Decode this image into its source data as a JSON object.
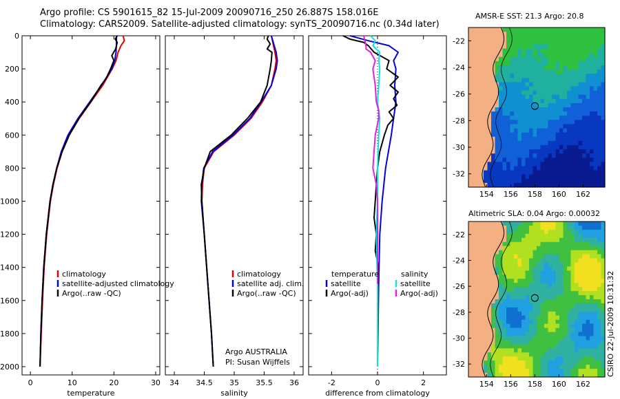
{
  "title_line1": "Argo profile: CS 5901615_82 15-Jul-2009 20090716_250 26.887S 158.016E",
  "title_line2": "Climatology: CARS2009. Satellite-adjusted climatology: synTS_20090716.nc (0.34d later)",
  "map_sst_title": "AMSR-E SST: 21.3  Argo: 20.8",
  "map_sla_title": "Altimetric SLA: 0.04  Argo: 0.00032",
  "stamp": "CSIRO 22-Jul-2009 10:31:32",
  "credit_line1": "Argo AUSTRALIA",
  "credit_line2": "PI: Susan Wijffels",
  "colors": {
    "red": "#e00000",
    "blue": "#0000e0",
    "black": "#000000",
    "cyan": "#10e0e0",
    "magenta": "#e020e0",
    "land": "#f4b083"
  },
  "chart_data": [
    {
      "type": "line",
      "xlabel": "temperature",
      "ylabel": "",
      "xlim": [
        -2,
        31
      ],
      "ylim": [
        2050,
        0
      ],
      "xticks": [
        0,
        10,
        20,
        30
      ],
      "yticks": [
        0,
        200,
        400,
        600,
        800,
        1000,
        1200,
        1400,
        1600,
        1800,
        2000
      ],
      "legend": [
        "climatology",
        "satellite-adjusted climatology",
        "Argo(..raw -QC)"
      ],
      "series": [
        {
          "name": "climatology",
          "color": "red",
          "depth": [
            0,
            30,
            60,
            100,
            150,
            200,
            300,
            400,
            500,
            600,
            700,
            800,
            900,
            1000,
            1200,
            1400,
            1600,
            1800,
            2000
          ],
          "values": [
            22.2,
            22.5,
            21.7,
            21.0,
            20.5,
            19.6,
            17.3,
            14.5,
            11.7,
            9.3,
            7.6,
            6.4,
            5.5,
            4.8,
            3.9,
            3.3,
            2.9,
            2.6,
            2.3
          ]
        },
        {
          "name": "satellite-adjusted climatology",
          "color": "blue",
          "depth": [
            0,
            30,
            60,
            100,
            150,
            200,
            300,
            400,
            500,
            600,
            700,
            800,
            900,
            1000,
            1200,
            1400,
            1600,
            1800,
            2000
          ],
          "values": [
            20.6,
            20.6,
            20.6,
            20.5,
            20.2,
            19.5,
            17.0,
            14.2,
            11.4,
            9.0,
            7.4,
            6.3,
            5.4,
            4.7,
            3.8,
            3.2,
            2.8,
            2.5,
            2.3
          ]
        },
        {
          "name": "Argo(..raw -QC)",
          "color": "black",
          "depth": [
            0,
            20,
            40,
            80,
            120,
            150,
            200,
            260,
            300,
            400,
            500,
            600,
            700,
            800,
            900,
            1000,
            1200,
            1400,
            1600,
            1800,
            2000
          ],
          "values": [
            20.8,
            20.3,
            20.8,
            20.4,
            19.5,
            20.0,
            19.2,
            18.1,
            16.9,
            14.4,
            11.6,
            9.3,
            7.6,
            6.3,
            5.4,
            4.7,
            3.8,
            3.2,
            2.8,
            2.5,
            2.3
          ]
        }
      ]
    },
    {
      "type": "line",
      "xlabel": "salinity",
      "ylabel": "",
      "xlim": [
        33.85,
        36.15
      ],
      "ylim": [
        2050,
        0
      ],
      "xticks": [
        34,
        34.5,
        35,
        35.5,
        36
      ],
      "legend": [
        "climatology",
        "satellite adj. clim.",
        "Argo(..raw -QC)"
      ],
      "series": [
        {
          "name": "climatology",
          "color": "red",
          "depth": [
            0,
            50,
            100,
            150,
            200,
            300,
            400,
            500,
            600,
            700,
            800,
            900,
            1000,
            1200,
            1400,
            1600,
            1800,
            2000
          ],
          "values": [
            35.62,
            35.65,
            35.68,
            35.7,
            35.68,
            35.62,
            35.47,
            35.28,
            35.0,
            34.66,
            34.5,
            34.47,
            34.46,
            34.5,
            34.54,
            34.58,
            34.62,
            34.65
          ]
        },
        {
          "name": "satellite adj. clim.",
          "color": "blue",
          "depth": [
            0,
            50,
            100,
            150,
            200,
            300,
            400,
            500,
            600,
            700,
            800,
            900,
            1000,
            1200,
            1400,
            1600,
            1800,
            2000
          ],
          "values": [
            35.62,
            35.66,
            35.7,
            35.72,
            35.7,
            35.62,
            35.45,
            35.26,
            34.98,
            34.64,
            34.49,
            34.46,
            34.45,
            34.5,
            34.54,
            34.58,
            34.62,
            34.65
          ]
        },
        {
          "name": "Argo(..raw -QC)",
          "color": "black",
          "depth": [
            0,
            20,
            50,
            80,
            100,
            150,
            200,
            300,
            400,
            500,
            600,
            700,
            800,
            900,
            1000,
            1200,
            1400,
            1600,
            1800,
            2000
          ],
          "values": [
            35.57,
            35.55,
            35.6,
            35.55,
            35.63,
            35.62,
            35.6,
            35.55,
            35.44,
            35.22,
            34.95,
            34.6,
            34.5,
            34.45,
            34.46,
            34.5,
            34.54,
            34.58,
            34.62,
            34.65
          ]
        }
      ]
    },
    {
      "type": "line",
      "xlabel": "difference from climatology",
      "ylabel": "",
      "xlim": [
        -3,
        3
      ],
      "ylim": [
        2050,
        0
      ],
      "xticks": [
        -2,
        0,
        2
      ],
      "legend": [
        "temperature",
        "satellite",
        "Argo(-adj)",
        "salinity",
        "satellite",
        "Argo(-adj)"
      ],
      "series": [
        {
          "name": "temperature satellite",
          "color": "blue",
          "depth": [
            0,
            30,
            60,
            100,
            150,
            200,
            300,
            400,
            500,
            600,
            800,
            1000,
            1200,
            1500,
            2000
          ],
          "values": [
            -1.2,
            -0.4,
            0.5,
            0.9,
            0.7,
            0.8,
            0.75,
            0.8,
            0.7,
            0.6,
            0.35,
            0.2,
            0.1,
            0.05,
            0.0
          ]
        },
        {
          "name": "temperature Argo(-adj)",
          "color": "black",
          "depth": [
            0,
            20,
            40,
            60,
            100,
            150,
            200,
            250,
            300,
            340,
            380,
            420,
            460,
            500,
            540,
            600,
            700,
            800,
            900,
            1000,
            1100,
            1200,
            1300,
            1400,
            1500,
            2000
          ],
          "values": [
            -1.5,
            -1.2,
            -0.6,
            -0.4,
            -0.15,
            0.5,
            0.4,
            0.9,
            0.55,
            0.9,
            0.7,
            0.85,
            0.5,
            0.7,
            0.45,
            0.3,
            0.1,
            0.0,
            -0.05,
            -0.1,
            -0.15,
            -0.05,
            -0.1,
            0.05,
            0.0,
            0.0
          ]
        },
        {
          "name": "salinity satellite",
          "color": "cyan",
          "depth": [
            0,
            30,
            60,
            100,
            150,
            200,
            300,
            400,
            500,
            600,
            800,
            1000,
            1200,
            1500,
            2000
          ],
          "values": [
            -0.3,
            -0.1,
            -0.2,
            0.1,
            0.05,
            0.1,
            0.05,
            0.0,
            0.1,
            0.05,
            0.0,
            0.0,
            -0.05,
            0.0,
            0.0
          ]
        },
        {
          "name": "salinity Argo(-adj)",
          "color": "magenta",
          "depth": [
            0,
            30,
            60,
            80,
            100,
            150,
            200,
            300,
            400,
            450,
            500,
            600,
            700,
            800,
            900,
            1000,
            1200,
            1500
          ],
          "values": [
            -0.6,
            -0.55,
            -0.5,
            -0.5,
            -0.3,
            -0.1,
            -0.2,
            -0.1,
            -0.05,
            0.05,
            0.05,
            -0.1,
            -0.15,
            -0.2,
            -0.05,
            0.0,
            0.0,
            0.0
          ]
        }
      ]
    },
    {
      "type": "heatmap",
      "title": "AMSR-E SST: 21.3  Argo: 20.8",
      "xticks": [
        154,
        156,
        158,
        160,
        162
      ],
      "yticks": [
        -22,
        -24,
        -26,
        -28,
        -30,
        -32
      ],
      "xlim": [
        152.5,
        163.8
      ],
      "ylim": [
        -33,
        -21
      ],
      "argo_position": [
        158.0,
        -26.9
      ]
    },
    {
      "type": "heatmap",
      "title": "Altimetric SLA: 0.04  Argo: 0.00032",
      "xticks": [
        154,
        156,
        158,
        160,
        162
      ],
      "yticks": [
        -22,
        -24,
        -26,
        -28,
        -30,
        -32
      ],
      "xlim": [
        152.5,
        163.8
      ],
      "ylim": [
        -33,
        -21
      ],
      "argo_position": [
        158.0,
        -26.9
      ]
    }
  ]
}
